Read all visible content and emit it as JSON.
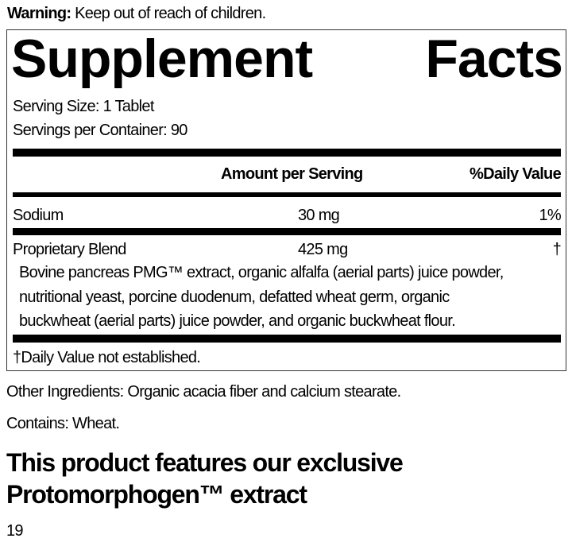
{
  "warning": {
    "label": "Warning:",
    "text": " Keep out of reach of children."
  },
  "facts": {
    "title_word1": "Supplement",
    "title_word2": "Facts",
    "serving_size": "Serving Size: 1 Tablet",
    "servings_per_container": "Servings per Container: 90",
    "header_amount": "Amount per Serving",
    "header_dv": "%Daily Value",
    "rows": [
      {
        "name": "Sodium",
        "amount": "30 mg",
        "dv": "1%"
      },
      {
        "name": "Proprietary Blend",
        "amount": "425 mg",
        "dv": "†"
      }
    ],
    "blend_lines": [
      "Bovine pancreas PMG™ extract, organic alfalfa (aerial parts) juice powder,",
      "nutritional yeast, porcine duodenum, defatted wheat germ, organic",
      "buckwheat (aerial parts) juice powder, and organic buckwheat flour."
    ],
    "footnote": "†Daily Value not established."
  },
  "other_ingredients": "Other Ingredients: Organic acacia fiber and calcium stearate.",
  "contains": "Contains: Wheat.",
  "feature_lines": [
    "This product features our exclusive",
    "Protomorphogen™ extract"
  ],
  "page_number": "19"
}
